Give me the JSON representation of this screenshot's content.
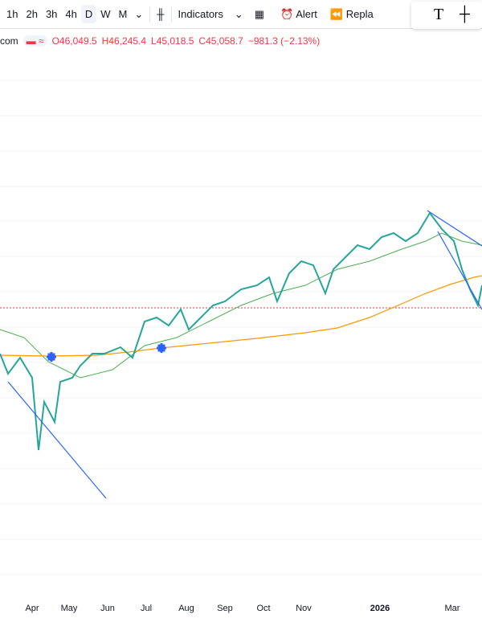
{
  "toolbar": {
    "intervals": [
      "1h",
      "2h",
      "3h",
      "4h",
      "D",
      "W",
      "M"
    ],
    "indicators": "Indicators",
    "alert": "Alert",
    "replay": "Repla",
    "active_interval": "D"
  },
  "legend": {
    "symbol": "com",
    "open": "O46,049.5",
    "high": "H46,245.4",
    "low": "L45,018.5",
    "close": "C45,058.7",
    "change": "−981.3 (−2.13%)"
  },
  "x_axis": {
    "labels": [
      "Apr",
      "May",
      "Jun",
      "Jul",
      "Aug",
      "Sep",
      "Oct",
      "Nov",
      "2026",
      "Mar"
    ]
  }
}
